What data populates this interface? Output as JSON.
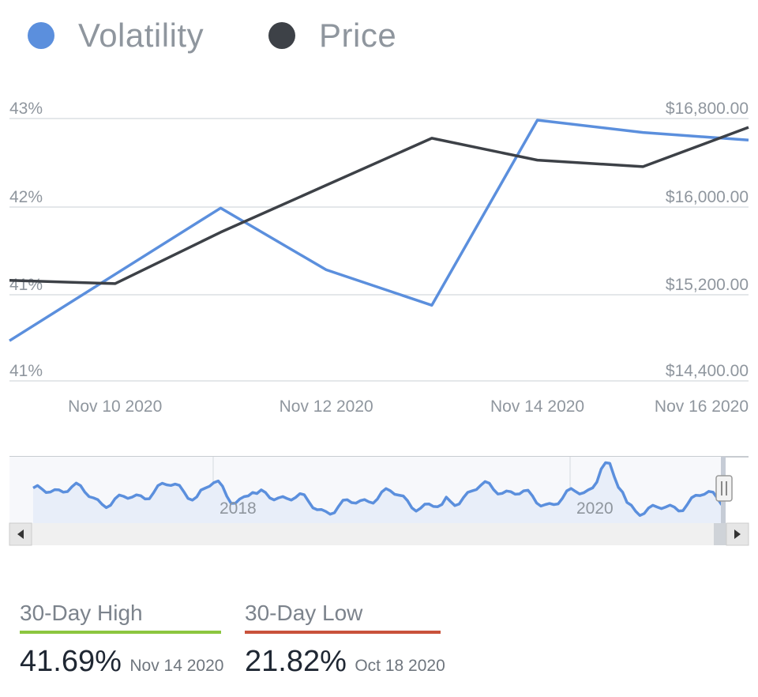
{
  "legend": [
    {
      "label": "Volatility",
      "color": "#5b8fdd"
    },
    {
      "label": "Price",
      "color": "#3d4147"
    }
  ],
  "chart_data": {
    "type": "line",
    "x": [
      "2020-11-09",
      "2020-11-10",
      "2020-11-11",
      "2020-11-12",
      "2020-11-13",
      "2020-11-14",
      "2020-11-15",
      "2020-11-16"
    ],
    "x_tick_labels": [
      "Nov 10 2020",
      "Nov 12 2020",
      "Nov 14 2020",
      "Nov 16 2020"
    ],
    "x_tick_values": [
      "2020-11-10",
      "2020-11-12",
      "2020-11-14",
      "2020-11-16"
    ],
    "y_left_tick_labels": [
      "43%",
      "42%",
      "41%",
      "41%"
    ],
    "y_right_tick_labels": [
      "$16,800.00",
      "$16,000.00",
      "$15,200.00",
      "$14,400.00"
    ],
    "y_right_range": [
      14400,
      16800
    ],
    "series": [
      {
        "name": "Volatility",
        "axis": "left",
        "color": "#5b8fdd",
        "values": [
          40.26,
          40.69,
          41.12,
          40.72,
          40.49,
          41.69,
          41.61,
          41.56
        ]
      },
      {
        "name": "Price",
        "axis": "right",
        "color": "#3d4147",
        "values": [
          15320,
          15290,
          15760,
          16190,
          16620,
          16420,
          16360,
          16720
        ]
      }
    ],
    "grid": true,
    "legend_position": "top-left"
  },
  "navigator": {
    "year_labels": [
      "2018",
      "2020"
    ],
    "scroll_left_icon": "left-arrow-icon",
    "scroll_right_icon": "right-arrow-icon"
  },
  "stats": {
    "high": {
      "label": "30-Day High",
      "value": "41.69%",
      "date": "Nov 14 2020",
      "color": "#8cc63f"
    },
    "low": {
      "label": "30-Day Low",
      "value": "21.82%",
      "date": "Oct 18 2020",
      "color": "#c9523b"
    }
  }
}
